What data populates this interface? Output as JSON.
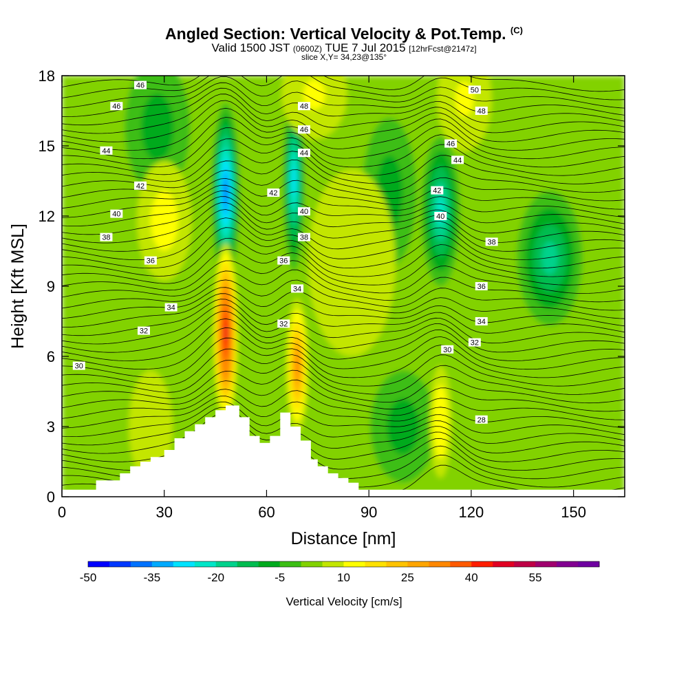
{
  "title": {
    "main": "Angled Section: Vertical Velocity & Pot.Temp.",
    "main_suffix": "(C)",
    "valid_a": "Valid 1500 JST",
    "valid_b": "(0600Z)",
    "valid_c": "TUE 7 Jul 2015",
    "valid_d": "[12hrFcst@2147z]",
    "slice": "slice X,Y= 34,23@135°"
  },
  "chart_data": {
    "type": "heatmap",
    "xlabel": "Distance [nm]",
    "ylabel": "Height [Kft MSL]",
    "xlim": [
      0,
      165
    ],
    "ylim": [
      0,
      18
    ],
    "x_ticks": [
      "0",
      "30",
      "60",
      "90",
      "120",
      "150"
    ],
    "y_ticks": [
      "0",
      "3",
      "6",
      "9",
      "12",
      "15",
      "18"
    ],
    "x_tick_values": [
      0,
      30,
      60,
      90,
      120,
      150
    ],
    "y_tick_values": [
      0,
      3,
      6,
      9,
      12,
      15,
      18
    ],
    "colorbar": {
      "label": "Vertical Velocity [cm/s]",
      "min": -50,
      "step": 5,
      "tick_labels": [
        "-50",
        "-35",
        "-20",
        "-5",
        "10",
        "25",
        "40",
        "55"
      ],
      "tick_values": [
        -50,
        -35,
        -20,
        -5,
        10,
        25,
        40,
        55
      ],
      "colors": [
        "#0000ff",
        "#0038ff",
        "#0072ff",
        "#00aaff",
        "#00e3ff",
        "#00e6c8",
        "#00d28c",
        "#00bc50",
        "#00aa1e",
        "#3cbe14",
        "#82d200",
        "#c3e600",
        "#ffff00",
        "#ffe100",
        "#ffc300",
        "#ffa500",
        "#ff8700",
        "#ff5a00",
        "#ff1e00",
        "#e10023",
        "#be0046",
        "#a0006e",
        "#820091",
        "#6e00a0"
      ]
    },
    "terrain": {
      "x": [
        0,
        10,
        10,
        17,
        17,
        20,
        20,
        23,
        23,
        26,
        26,
        30,
        30,
        33,
        33,
        36,
        36,
        39,
        39,
        42,
        42,
        45,
        45,
        48,
        48,
        52,
        52,
        55,
        55,
        58,
        58,
        61,
        61,
        64,
        64,
        67,
        67,
        70,
        70,
        73,
        73,
        75,
        75,
        78,
        78,
        81,
        81,
        84,
        84,
        87,
        87,
        89,
        89,
        165
      ],
      "z": [
        0.3,
        0.3,
        0.7,
        0.7,
        1.0,
        1.0,
        1.3,
        1.3,
        1.5,
        1.5,
        1.7,
        1.7,
        2.0,
        2.0,
        2.5,
        2.5,
        2.8,
        2.8,
        3.1,
        3.1,
        3.4,
        3.4,
        3.7,
        3.7,
        3.9,
        3.9,
        3.4,
        3.4,
        2.6,
        2.6,
        2.3,
        2.3,
        2.6,
        2.6,
        3.6,
        3.6,
        3.0,
        3.0,
        2.4,
        2.4,
        1.6,
        1.6,
        1.3,
        1.3,
        1.0,
        1.0,
        0.8,
        0.8,
        0.6,
        0.6,
        0.3,
        0.3,
        0.3,
        0.3
      ]
    },
    "updrafts": [
      {
        "x": 48,
        "z": 7.0,
        "sx": 2.2,
        "sz": 2.4,
        "w": 48
      },
      {
        "x": 69,
        "z": 5.6,
        "sx": 2.0,
        "sz": 1.8,
        "w": 30
      },
      {
        "x": 111,
        "z": 3.2,
        "sx": 2.0,
        "sz": 1.5,
        "w": 14
      },
      {
        "x": 26,
        "z": 3.0,
        "sx": 4.0,
        "sz": 1.5,
        "w": 8
      },
      {
        "x": 74,
        "z": 17.2,
        "sx": 6.0,
        "sz": 1.2,
        "w": 12
      },
      {
        "x": 118,
        "z": 17.0,
        "sx": 5.0,
        "sz": 1.4,
        "w": 12
      },
      {
        "x": 30,
        "z": 11.8,
        "sx": 5.0,
        "sz": 1.6,
        "w": 10
      },
      {
        "x": 85,
        "z": 10.0,
        "sx": 8.0,
        "sz": 2.5,
        "w": 9
      }
    ],
    "downdrafts": [
      {
        "x": 48,
        "z": 13.0,
        "sx": 2.6,
        "sz": 2.4,
        "w": -40
      },
      {
        "x": 68,
        "z": 13.5,
        "sx": 2.0,
        "sz": 2.4,
        "w": -26
      },
      {
        "x": 111,
        "z": 12.2,
        "sx": 3.6,
        "sz": 2.0,
        "w": -22
      },
      {
        "x": 143,
        "z": 10.2,
        "sx": 6.0,
        "sz": 1.8,
        "w": -16
      },
      {
        "x": 96,
        "z": 13.0,
        "sx": 5.0,
        "sz": 2.0,
        "w": -10
      },
      {
        "x": 28,
        "z": 15.8,
        "sx": 6.0,
        "sz": 1.8,
        "w": -10
      },
      {
        "x": 100,
        "z": 3.0,
        "sx": 6.0,
        "sz": 1.5,
        "w": -8
      }
    ],
    "isentrope_labels": [
      {
        "text": "46",
        "x": 23,
        "z": 17.6
      },
      {
        "text": "46",
        "x": 16,
        "z": 16.7
      },
      {
        "text": "44",
        "x": 13,
        "z": 14.8
      },
      {
        "text": "42",
        "x": 23,
        "z": 13.3
      },
      {
        "text": "40",
        "x": 16,
        "z": 12.1
      },
      {
        "text": "38",
        "x": 13,
        "z": 11.1
      },
      {
        "text": "36",
        "x": 26,
        "z": 10.1
      },
      {
        "text": "34",
        "x": 32,
        "z": 8.1
      },
      {
        "text": "32",
        "x": 24,
        "z": 7.1
      },
      {
        "text": "30",
        "x": 5,
        "z": 5.6
      },
      {
        "text": "48",
        "x": 71,
        "z": 16.7
      },
      {
        "text": "46",
        "x": 71,
        "z": 15.7
      },
      {
        "text": "44",
        "x": 71,
        "z": 14.7
      },
      {
        "text": "42",
        "x": 62,
        "z": 13.0
      },
      {
        "text": "40",
        "x": 71,
        "z": 12.2
      },
      {
        "text": "38",
        "x": 71,
        "z": 11.1
      },
      {
        "text": "36",
        "x": 65,
        "z": 10.1
      },
      {
        "text": "34",
        "x": 69,
        "z": 8.9
      },
      {
        "text": "32",
        "x": 65,
        "z": 7.4
      },
      {
        "text": "50",
        "x": 121,
        "z": 17.4
      },
      {
        "text": "48",
        "x": 123,
        "z": 16.5
      },
      {
        "text": "46",
        "x": 114,
        "z": 15.1
      },
      {
        "text": "44",
        "x": 116,
        "z": 14.4
      },
      {
        "text": "42",
        "x": 110,
        "z": 13.1
      },
      {
        "text": "40",
        "x": 111,
        "z": 12.0
      },
      {
        "text": "38",
        "x": 126,
        "z": 10.9
      },
      {
        "text": "36",
        "x": 123,
        "z": 9.0
      },
      {
        "text": "34",
        "x": 123,
        "z": 7.5
      },
      {
        "text": "32",
        "x": 121,
        "z": 6.6
      },
      {
        "text": "30",
        "x": 113,
        "z": 6.3
      },
      {
        "text": "28",
        "x": 123,
        "z": 3.3
      }
    ]
  }
}
